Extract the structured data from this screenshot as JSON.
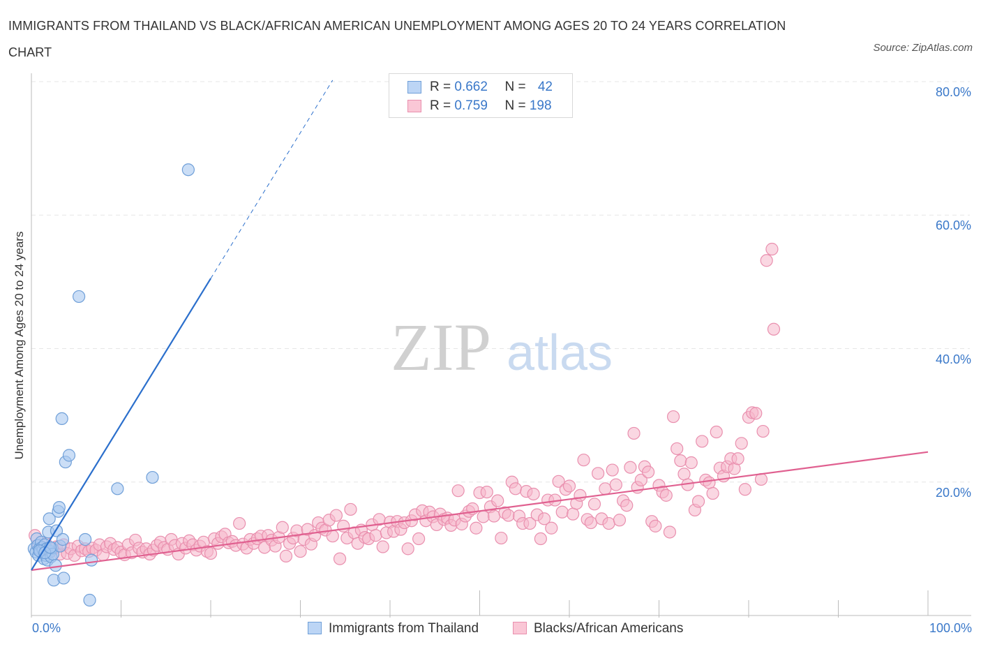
{
  "header": {
    "title": "IMMIGRANTS FROM THAILAND VS BLACK/AFRICAN AMERICAN UNEMPLOYMENT AMONG AGES 20 TO 24 YEARS CORRELATION CHART",
    "source": "Source: ZipAtlas.com"
  },
  "watermark": {
    "zip": "ZIP",
    "atlas": "atlas"
  },
  "legend_stats": [
    {
      "r_label": "R = ",
      "r_value": "0.662",
      "n_label": "N = ",
      "n_value": "42"
    },
    {
      "r_label": "R = ",
      "r_value": "0.759",
      "n_label": "N = ",
      "n_value": "198"
    }
  ],
  "chart_data": {
    "type": "scatter",
    "title": "IMMIGRANTS FROM THAILAND VS BLACK/AFRICAN AMERICAN UNEMPLOYMENT AMONG AGES 20 TO 24 YEARS CORRELATION CHART",
    "xlabel": "",
    "ylabel": "Unemployment Among Ages 20 to 24 years",
    "xlim": [
      0,
      100
    ],
    "ylim": [
      0,
      80
    ],
    "x_tick_labels": [
      "0.0%",
      "100.0%"
    ],
    "y_ticks": [
      20,
      40,
      60,
      80
    ],
    "y_tick_labels": [
      "20.0%",
      "40.0%",
      "60.0%",
      "80.0%"
    ],
    "grid": true,
    "legend_position": "bottom-center",
    "colors": {
      "thailand_fill": "#a9c8f0",
      "thailand_stroke": "#6f9fd8",
      "thailand_line": "#2b6fcc",
      "black_fill": "#f6b6cb",
      "black_stroke": "#e98fae",
      "black_line": "#e06090",
      "tick_text": "#3a78c9"
    },
    "series": [
      {
        "name": "Immigrants from Thailand",
        "R": 0.662,
        "N": 42,
        "trend": {
          "x0": 0,
          "y0": 6.8,
          "x1": 20,
          "y1": 50.5,
          "dashed_to_x": 33.6
        },
        "points": [
          [
            0.3,
            10.0
          ],
          [
            0.5,
            9.5
          ],
          [
            0.6,
            11.5
          ],
          [
            0.7,
            10.5
          ],
          [
            0.8,
            9.0
          ],
          [
            0.9,
            10.0
          ],
          [
            1.0,
            9.6
          ],
          [
            1.1,
            11.0
          ],
          [
            1.2,
            10.2
          ],
          [
            1.3,
            9.8
          ],
          [
            1.4,
            8.5
          ],
          [
            1.5,
            10.6
          ],
          [
            1.6,
            9.0
          ],
          [
            1.7,
            10.0
          ],
          [
            1.8,
            8.3
          ],
          [
            1.9,
            12.5
          ],
          [
            2.0,
            14.5
          ],
          [
            2.1,
            9.6
          ],
          [
            2.2,
            8.8
          ],
          [
            2.3,
            10.1
          ],
          [
            2.4,
            9.2
          ],
          [
            2.5,
            5.3
          ],
          [
            2.7,
            7.5
          ],
          [
            2.8,
            12.7
          ],
          [
            3.0,
            15.6
          ],
          [
            3.1,
            16.2
          ],
          [
            3.2,
            10.4
          ],
          [
            3.4,
            29.5
          ],
          [
            3.5,
            11.4
          ],
          [
            3.6,
            5.6
          ],
          [
            3.8,
            23.0
          ],
          [
            4.2,
            24.0
          ],
          [
            5.3,
            47.8
          ],
          [
            6.0,
            11.4
          ],
          [
            6.5,
            2.3
          ],
          [
            6.7,
            8.3
          ],
          [
            9.6,
            19.0
          ],
          [
            13.5,
            20.7
          ],
          [
            17.5,
            66.8
          ],
          [
            0.9,
            9.7
          ],
          [
            1.5,
            9.4
          ],
          [
            2.1,
            10.2
          ]
        ]
      },
      {
        "name": "Blacks/African Americans",
        "R": 0.759,
        "N": 198,
        "trend": {
          "x0": 0,
          "y0": 6.8,
          "x1": 100,
          "y1": 24.5
        },
        "points": [
          [
            0.4,
            12.0
          ],
          [
            0.8,
            10.5
          ],
          [
            1.2,
            9.6
          ],
          [
            1.6,
            10.8
          ],
          [
            2.0,
            9.4
          ],
          [
            2.4,
            9.9
          ],
          [
            2.8,
            10.3
          ],
          [
            3.2,
            9.2
          ],
          [
            3.6,
            10.6
          ],
          [
            4.0,
            9.3
          ],
          [
            4.4,
            10.0
          ],
          [
            4.8,
            9.0
          ],
          [
            5.2,
            10.4
          ],
          [
            5.6,
            9.7
          ],
          [
            6.0,
            10.0
          ],
          [
            6.4,
            9.6
          ],
          [
            6.8,
            10.1
          ],
          [
            7.2,
            9.8
          ],
          [
            7.6,
            10.6
          ],
          [
            8.0,
            9.1
          ],
          [
            8.4,
            10.3
          ],
          [
            8.8,
            10.8
          ],
          [
            9.2,
            9.9
          ],
          [
            9.6,
            10.2
          ],
          [
            10.0,
            9.5
          ],
          [
            10.4,
            9.1
          ],
          [
            10.8,
            10.6
          ],
          [
            11.2,
            9.4
          ],
          [
            11.6,
            11.3
          ],
          [
            12.0,
            10.1
          ],
          [
            12.4,
            9.5
          ],
          [
            12.8,
            10.0
          ],
          [
            13.2,
            9.2
          ],
          [
            13.6,
            9.8
          ],
          [
            14.0,
            10.5
          ],
          [
            14.4,
            11.0
          ],
          [
            14.8,
            10.2
          ],
          [
            15.2,
            9.9
          ],
          [
            15.6,
            11.4
          ],
          [
            16.0,
            10.5
          ],
          [
            16.4,
            9.2
          ],
          [
            16.8,
            10.8
          ],
          [
            17.2,
            10.1
          ],
          [
            17.6,
            11.2
          ],
          [
            18.0,
            10.6
          ],
          [
            18.4,
            9.8
          ],
          [
            18.8,
            10.4
          ],
          [
            19.2,
            11.0
          ],
          [
            19.6,
            9.6
          ],
          [
            20.0,
            9.3
          ],
          [
            20.4,
            11.5
          ],
          [
            20.8,
            10.8
          ],
          [
            21.2,
            11.8
          ],
          [
            21.6,
            12.2
          ],
          [
            22.0,
            10.9
          ],
          [
            22.4,
            11.1
          ],
          [
            22.8,
            10.5
          ],
          [
            23.2,
            13.8
          ],
          [
            23.6,
            10.7
          ],
          [
            24.0,
            10.1
          ],
          [
            24.4,
            11.4
          ],
          [
            24.8,
            10.8
          ],
          [
            25.2,
            11.5
          ],
          [
            25.6,
            11.9
          ],
          [
            26.0,
            10.2
          ],
          [
            26.4,
            12.0
          ],
          [
            26.8,
            11.3
          ],
          [
            27.2,
            10.4
          ],
          [
            27.6,
            11.7
          ],
          [
            28.0,
            13.2
          ],
          [
            28.4,
            8.9
          ],
          [
            28.8,
            10.8
          ],
          [
            29.2,
            11.6
          ],
          [
            29.6,
            12.7
          ],
          [
            30.0,
            9.6
          ],
          [
            30.4,
            11.4
          ],
          [
            30.8,
            12.9
          ],
          [
            31.2,
            10.7
          ],
          [
            31.6,
            12.0
          ],
          [
            32.0,
            13.9
          ],
          [
            32.4,
            13.1
          ],
          [
            32.8,
            12.8
          ],
          [
            33.2,
            14.3
          ],
          [
            33.6,
            11.9
          ],
          [
            34.0,
            15.0
          ],
          [
            34.4,
            8.5
          ],
          [
            34.8,
            13.4
          ],
          [
            35.2,
            11.6
          ],
          [
            35.6,
            15.9
          ],
          [
            36.0,
            12.4
          ],
          [
            36.4,
            10.8
          ],
          [
            36.8,
            12.8
          ],
          [
            37.2,
            11.7
          ],
          [
            37.6,
            11.5
          ],
          [
            38.0,
            13.6
          ],
          [
            38.4,
            12.0
          ],
          [
            38.8,
            14.4
          ],
          [
            39.2,
            10.3
          ],
          [
            39.6,
            12.4
          ],
          [
            40.0,
            14.0
          ],
          [
            40.4,
            12.6
          ],
          [
            40.8,
            14.1
          ],
          [
            41.2,
            12.9
          ],
          [
            41.6,
            13.9
          ],
          [
            42.0,
            10.0
          ],
          [
            42.4,
            14.2
          ],
          [
            42.8,
            15.1
          ],
          [
            43.2,
            11.5
          ],
          [
            43.6,
            15.7
          ],
          [
            44.0,
            14.2
          ],
          [
            44.4,
            15.5
          ],
          [
            44.8,
            14.8
          ],
          [
            45.2,
            13.6
          ],
          [
            45.6,
            15.2
          ],
          [
            46.0,
            14.4
          ],
          [
            46.4,
            14.6
          ],
          [
            46.8,
            13.5
          ],
          [
            47.2,
            14.3
          ],
          [
            47.6,
            18.7
          ],
          [
            48.0,
            13.7
          ],
          [
            48.4,
            14.9
          ],
          [
            48.8,
            15.6
          ],
          [
            49.2,
            16.0
          ],
          [
            49.6,
            13.1
          ],
          [
            50.0,
            18.4
          ],
          [
            50.4,
            14.8
          ],
          [
            50.8,
            18.5
          ],
          [
            51.2,
            16.3
          ],
          [
            51.6,
            14.9
          ],
          [
            52.0,
            17.2
          ],
          [
            52.4,
            11.6
          ],
          [
            52.8,
            15.4
          ],
          [
            53.2,
            15.0
          ],
          [
            53.6,
            20.0
          ],
          [
            54.0,
            19.0
          ],
          [
            54.4,
            14.9
          ],
          [
            54.8,
            13.8
          ],
          [
            55.2,
            18.6
          ],
          [
            55.6,
            13.8
          ],
          [
            56.0,
            18.2
          ],
          [
            56.4,
            15.1
          ],
          [
            56.8,
            11.5
          ],
          [
            57.2,
            14.5
          ],
          [
            57.6,
            17.3
          ],
          [
            58.0,
            13.1
          ],
          [
            58.4,
            17.3
          ],
          [
            58.8,
            20.1
          ],
          [
            59.2,
            15.5
          ],
          [
            59.6,
            18.9
          ],
          [
            60.0,
            19.4
          ],
          [
            60.4,
            15.2
          ],
          [
            60.8,
            16.8
          ],
          [
            61.2,
            18.0
          ],
          [
            61.6,
            23.3
          ],
          [
            62.0,
            14.4
          ],
          [
            62.4,
            13.9
          ],
          [
            62.8,
            16.7
          ],
          [
            63.2,
            21.3
          ],
          [
            63.6,
            14.5
          ],
          [
            64.0,
            19.0
          ],
          [
            64.4,
            13.8
          ],
          [
            64.8,
            21.8
          ],
          [
            65.2,
            19.6
          ],
          [
            65.6,
            14.3
          ],
          [
            66.0,
            17.2
          ],
          [
            66.4,
            16.5
          ],
          [
            66.8,
            22.2
          ],
          [
            67.2,
            27.3
          ],
          [
            67.6,
            19.2
          ],
          [
            68.0,
            20.3
          ],
          [
            68.4,
            22.3
          ],
          [
            68.8,
            21.5
          ],
          [
            69.2,
            14.1
          ],
          [
            69.6,
            13.4
          ],
          [
            70.0,
            19.5
          ],
          [
            70.4,
            18.5
          ],
          [
            70.8,
            18.0
          ],
          [
            71.2,
            12.5
          ],
          [
            71.6,
            29.8
          ],
          [
            72.0,
            25.0
          ],
          [
            72.4,
            23.2
          ],
          [
            72.8,
            21.2
          ],
          [
            73.2,
            19.6
          ],
          [
            73.6,
            22.9
          ],
          [
            74.0,
            15.8
          ],
          [
            74.4,
            17.1
          ],
          [
            74.8,
            26.1
          ],
          [
            75.2,
            20.3
          ],
          [
            75.6,
            19.9
          ],
          [
            76.0,
            18.3
          ],
          [
            76.4,
            27.5
          ],
          [
            76.8,
            22.1
          ],
          [
            77.2,
            20.9
          ],
          [
            77.6,
            22.3
          ],
          [
            78.0,
            23.5
          ],
          [
            78.4,
            22.0
          ],
          [
            78.8,
            23.5
          ],
          [
            79.2,
            25.8
          ],
          [
            79.6,
            18.9
          ],
          [
            80.0,
            29.7
          ],
          [
            80.4,
            30.4
          ],
          [
            80.8,
            30.3
          ],
          [
            81.4,
            20.4
          ],
          [
            81.6,
            27.6
          ],
          [
            82.0,
            53.2
          ],
          [
            82.6,
            54.9
          ],
          [
            82.8,
            42.9
          ]
        ]
      }
    ]
  },
  "bottom_legend": {
    "thailand_label": "Immigrants from Thailand",
    "black_label": "Blacks/African Americans"
  }
}
